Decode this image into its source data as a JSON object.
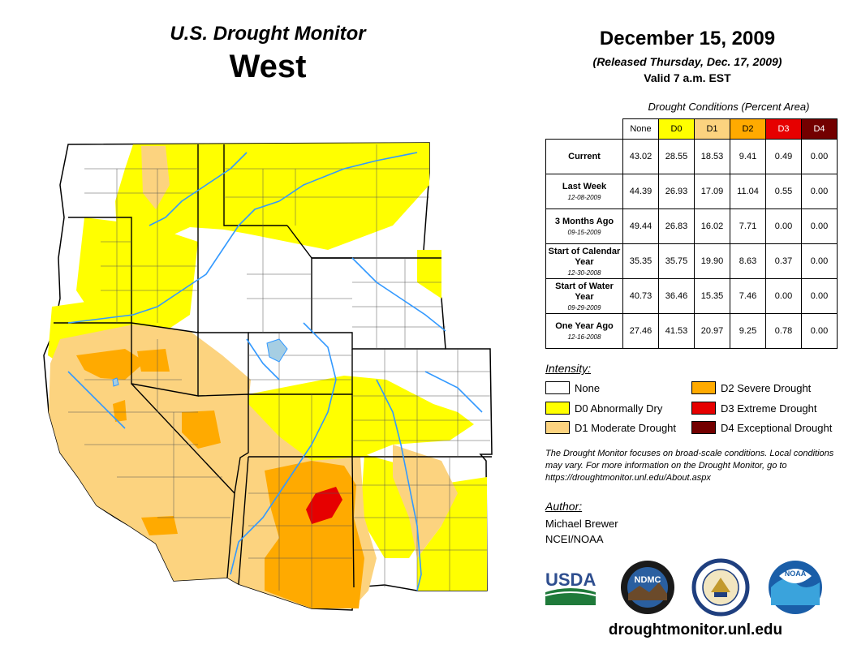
{
  "header": {
    "title": "U.S. Drought Monitor",
    "region": "West",
    "date": "December 15, 2009",
    "released": "(Released Thursday, Dec. 17, 2009)",
    "valid": "Valid 7 a.m. EST"
  },
  "table": {
    "caption": "Drought Conditions (Percent Area)",
    "columns": [
      "None",
      "D0",
      "D1",
      "D2",
      "D3",
      "D4"
    ],
    "column_colors": [
      "#ffffff",
      "#ffff00",
      "#fcd37f",
      "#ffaa00",
      "#e60000",
      "#730000"
    ],
    "rows": [
      {
        "label": "Current",
        "date": "",
        "values": [
          "43.02",
          "28.55",
          "18.53",
          "9.41",
          "0.49",
          "0.00"
        ]
      },
      {
        "label": "Last Week",
        "date": "12-08-2009",
        "values": [
          "44.39",
          "26.93",
          "17.09",
          "11.04",
          "0.55",
          "0.00"
        ]
      },
      {
        "label": "3 Months Ago",
        "date": "09-15-2009",
        "values": [
          "49.44",
          "26.83",
          "16.02",
          "7.71",
          "0.00",
          "0.00"
        ]
      },
      {
        "label": "Start of Calendar Year",
        "date": "12-30-2008",
        "values": [
          "35.35",
          "35.75",
          "19.90",
          "8.63",
          "0.37",
          "0.00"
        ]
      },
      {
        "label": "Start of Water Year",
        "date": "09-29-2009",
        "values": [
          "40.73",
          "36.46",
          "15.35",
          "7.46",
          "0.00",
          "0.00"
        ]
      },
      {
        "label": "One Year Ago",
        "date": "12-16-2008",
        "values": [
          "27.46",
          "41.53",
          "20.97",
          "9.25",
          "0.78",
          "0.00"
        ]
      }
    ]
  },
  "legend": {
    "title": "Intensity:",
    "items": [
      {
        "label": "None",
        "color": "#ffffff"
      },
      {
        "label": "D0 Abnormally Dry",
        "color": "#ffff00"
      },
      {
        "label": "D1 Moderate Drought",
        "color": "#fcd37f"
      },
      {
        "label": "D2 Severe Drought",
        "color": "#ffaa00"
      },
      {
        "label": "D3 Extreme Drought",
        "color": "#e60000"
      },
      {
        "label": "D4 Exceptional Drought",
        "color": "#730000"
      }
    ]
  },
  "note": "The Drought Monitor focuses on broad-scale conditions. Local conditions may vary. For more information on the Drought Monitor, go to https://droughtmonitor.unl.edu/About.aspx",
  "author": {
    "title": "Author:",
    "name": "Michael Brewer",
    "org": "NCEI/NOAA"
  },
  "logos": {
    "usda": "USDA",
    "ndmc": "NDMC",
    "ndmc_icon": "ndmc-logo",
    "doc_icon": "commerce-seal",
    "noaa": "NOAA"
  },
  "footer": {
    "url": "droughtmonitor.unl.edu"
  }
}
